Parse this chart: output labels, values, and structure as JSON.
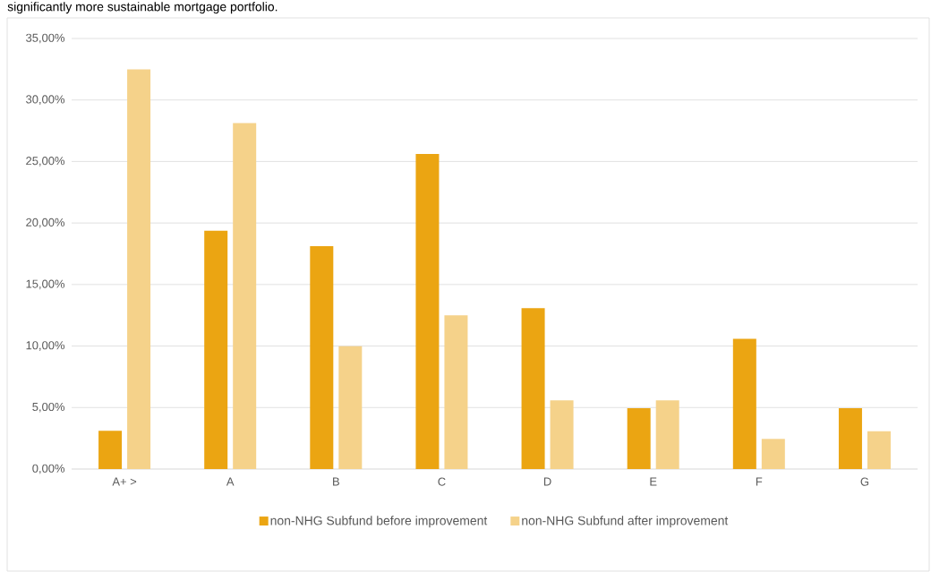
{
  "chart_data": {
    "type": "bar",
    "title": "significantly more sustainable mortgage portfolio.",
    "categories": [
      "A+ >",
      "A",
      "B",
      "C",
      "D",
      "E",
      "F",
      "G"
    ],
    "series": [
      {
        "name": "non-NHG Subfund before improvement",
        "color": "#eba512",
        "values": [
          3.11,
          19.37,
          18.12,
          25.62,
          13.08,
          4.95,
          10.58,
          4.95
        ]
      },
      {
        "name": "non-NHG Subfund after improvement",
        "color": "#f5d28a",
        "values": [
          32.49,
          28.13,
          9.98,
          12.5,
          5.58,
          5.58,
          2.45,
          3.08
        ]
      }
    ],
    "ylim": [
      0,
      35
    ],
    "yticks": [
      {
        "value": 0,
        "label": "0,00%"
      },
      {
        "value": 5,
        "label": "5,00%"
      },
      {
        "value": 10,
        "label": "10,00%"
      },
      {
        "value": 15,
        "label": "15,00%"
      },
      {
        "value": 20,
        "label": "20,00%"
      },
      {
        "value": 25,
        "label": "25,00%"
      },
      {
        "value": 30,
        "label": "30,00%"
      },
      {
        "value": 35,
        "label": "35,00%"
      }
    ],
    "grid": "y",
    "legend": "bottom"
  }
}
